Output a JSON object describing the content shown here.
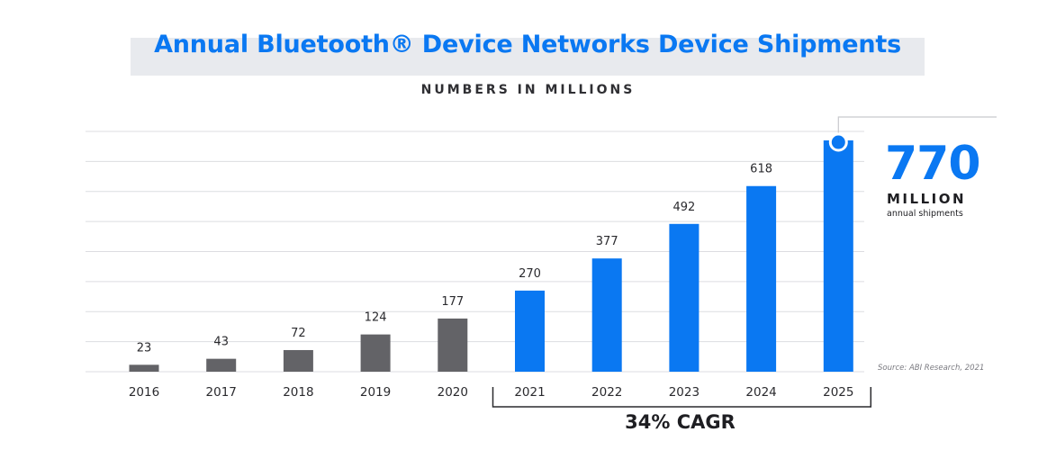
{
  "chart_data": {
    "type": "bar",
    "title": "Annual Bluetooth® Device Networks Device Shipments",
    "subtitle": "NUMBERS IN MILLIONS",
    "categories": [
      "2016",
      "2017",
      "2018",
      "2019",
      "2020",
      "2021",
      "2022",
      "2023",
      "2024",
      "2025"
    ],
    "values": [
      23,
      43,
      72,
      124,
      177,
      270,
      377,
      492,
      618,
      770
    ],
    "value_labels": [
      "23",
      "43",
      "72",
      "124",
      "177",
      "270",
      "377",
      "492",
      "618",
      ""
    ],
    "ylim": [
      0,
      800
    ],
    "grid": true,
    "legend": "none",
    "colors": {
      "historic": "#636367",
      "forecast": "#0a78f2",
      "grid": "#dcdde1"
    },
    "forecast_start": "2021"
  },
  "callout": {
    "value": "770",
    "unit": "MILLION",
    "caption": "annual shipments"
  },
  "source": "Source: ABI Research, 2021",
  "cagr": "34% CAGR"
}
